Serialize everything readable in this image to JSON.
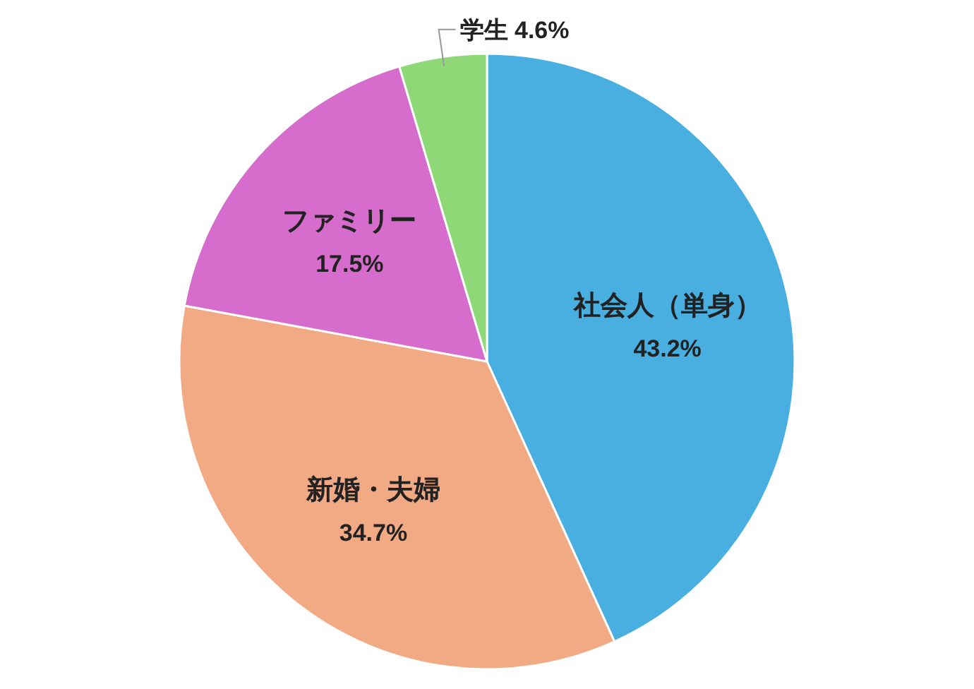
{
  "chart_data": {
    "type": "pie",
    "categories": [
      "社会人（単身）",
      "新婚・夫婦",
      "ファミリー",
      "学生"
    ],
    "values": [
      43.2,
      34.7,
      17.5,
      4.6
    ],
    "colors": [
      "#48afe0",
      "#f2aa85",
      "#d66ccb",
      "#8fd877"
    ],
    "value_labels": [
      "43.2%",
      "34.7%",
      "17.5%",
      "4.6%"
    ],
    "legend": false
  }
}
